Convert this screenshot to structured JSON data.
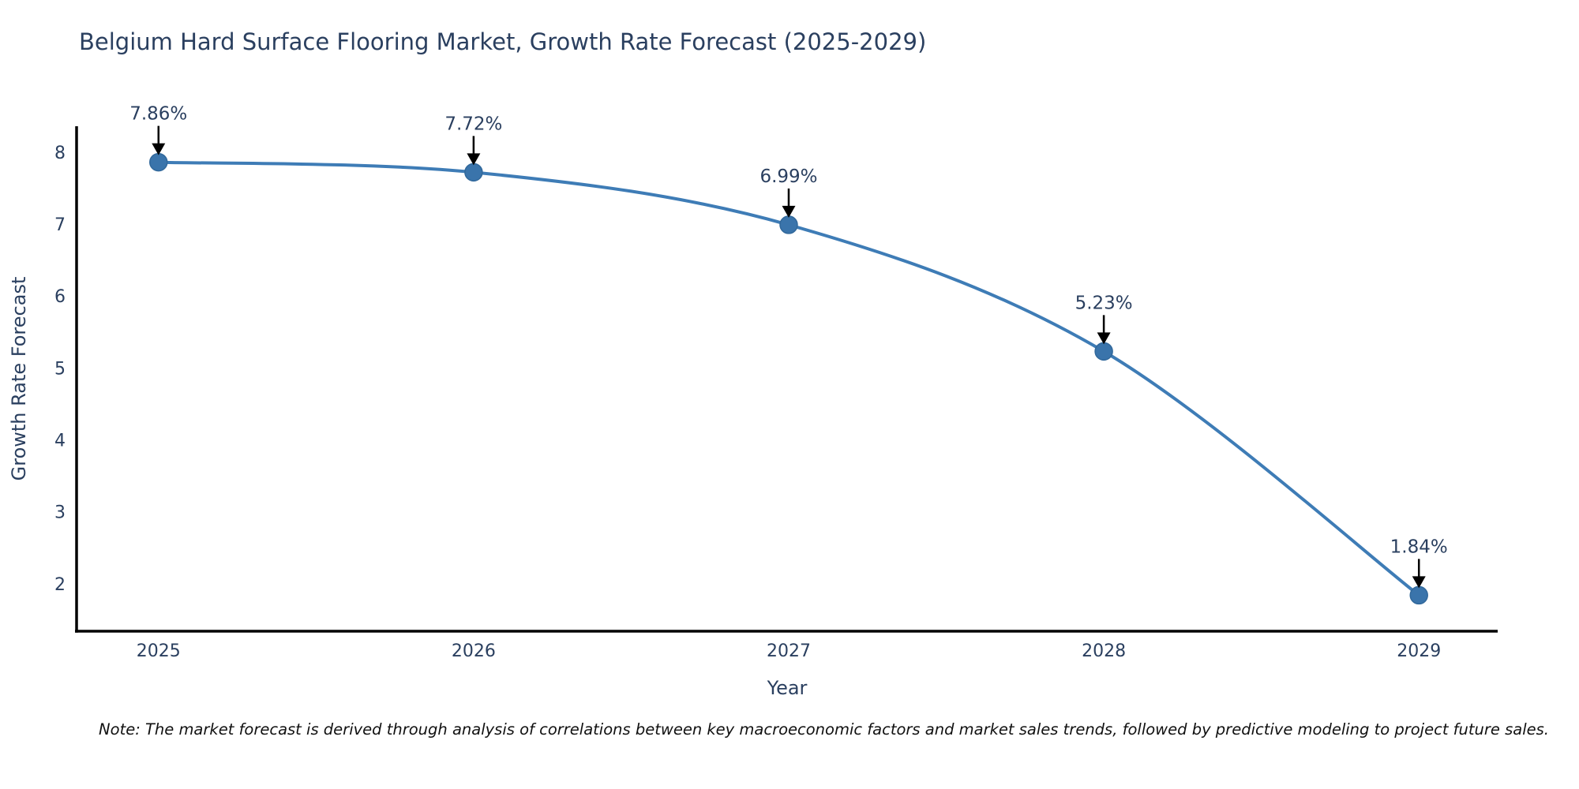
{
  "figure": {
    "title": "Belgium Hard Surface Flooring Market, Growth Rate Forecast (2025-2029)",
    "note": "Note: The market forecast is derived through analysis of correlations between key macroeconomic factors and market sales trends, followed by predictive modeling to project future sales."
  },
  "chart_data": {
    "type": "line",
    "title": "Belgium Hard Surface Flooring Market, Growth Rate Forecast (2025-2029)",
    "x": [
      2025,
      2026,
      2027,
      2028,
      2029
    ],
    "values": [
      7.86,
      7.72,
      6.99,
      5.23,
      1.84
    ],
    "point_labels": [
      "7.86%",
      "7.72%",
      "6.99%",
      "5.23%",
      "1.84%"
    ],
    "xlabel": "Year",
    "ylabel": "Growth Rate Forecast",
    "xticks": [
      2025,
      2026,
      2027,
      2028,
      2029
    ],
    "yticks": [
      2,
      3,
      4,
      5,
      6,
      7,
      8
    ],
    "xlim": [
      2024.74,
      2029.25
    ],
    "ylim": [
      1.34,
      8.36
    ],
    "grid": false,
    "legend": false,
    "line_shape": "spline",
    "colors": {
      "line": "#3e7cb6",
      "marker_fill": "#3a74ab",
      "marker_edge": "#31689b",
      "axis_line": "#000000",
      "tick_text": "#2a3f5f",
      "axis_title_text": "#2a3f5f",
      "annotation_text": "#2a3f5f",
      "annotation_arrow": "#000000"
    }
  }
}
